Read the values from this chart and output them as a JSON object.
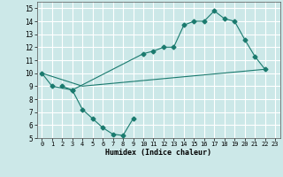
{
  "title": "",
  "xlabel": "Humidex (Indice chaleur)",
  "ylabel": "",
  "bg_color": "#cce8e8",
  "grid_color": "#ffffff",
  "line_color": "#1a7a6e",
  "xlim": [
    -0.5,
    23.5
  ],
  "ylim": [
    5,
    15.5
  ],
  "xticks": [
    0,
    1,
    2,
    3,
    4,
    5,
    6,
    7,
    8,
    9,
    10,
    11,
    12,
    13,
    14,
    15,
    16,
    17,
    18,
    19,
    20,
    21,
    22,
    23
  ],
  "yticks": [
    5,
    6,
    7,
    8,
    9,
    10,
    11,
    12,
    13,
    14,
    15
  ],
  "line1_x": [
    0,
    1,
    3,
    10,
    11,
    12,
    13,
    14,
    15,
    16,
    17,
    18,
    19,
    20,
    21,
    22
  ],
  "line1_y": [
    10,
    9,
    8.7,
    11.5,
    11.7,
    12.0,
    12.0,
    13.7,
    14.0,
    14.0,
    14.8,
    14.2,
    14.0,
    12.6,
    11.3,
    10.3
  ],
  "line2_x": [
    0,
    4,
    22
  ],
  "line2_y": [
    10,
    9.0,
    10.3
  ],
  "line3_x": [
    2,
    3,
    4,
    5,
    6,
    7,
    8,
    9
  ],
  "line3_y": [
    9.0,
    8.7,
    7.2,
    6.5,
    5.8,
    5.3,
    5.2,
    6.5
  ],
  "marker_size": 2.5
}
